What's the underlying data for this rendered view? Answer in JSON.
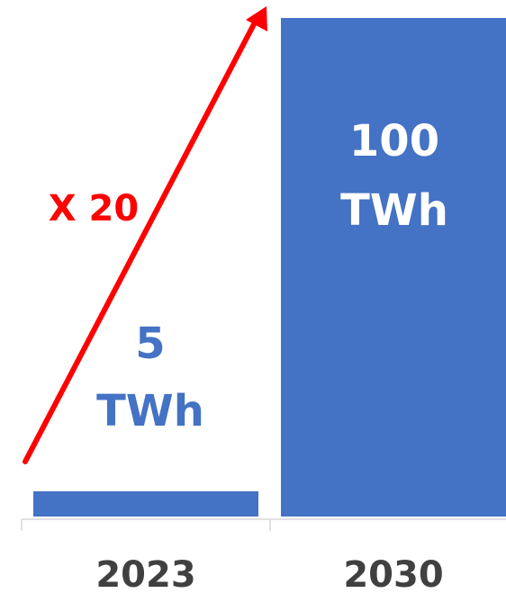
{
  "chart_data": {
    "type": "bar",
    "categories": [
      "2023",
      "2030"
    ],
    "values": [
      5,
      100
    ],
    "unit": "TWh",
    "data_labels": [
      {
        "value": "5",
        "unit": "TWh"
      },
      {
        "value": "100",
        "unit": "TWh"
      }
    ],
    "annotation": "X 20",
    "ylim": [
      0,
      100
    ],
    "grid": false,
    "legend": "none",
    "colors": {
      "bar": "#4472C4",
      "label_outside": "#4472C4",
      "label_inside": "#FFFFFF",
      "arrow": "#FF0000",
      "axis": "#D9D9D9",
      "tick_text": "#404040"
    }
  }
}
